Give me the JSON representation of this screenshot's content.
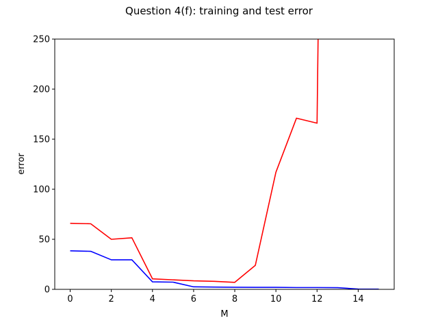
{
  "chart_data": {
    "type": "line",
    "title": "Question 4(f): training and test error",
    "xlabel": "M",
    "ylabel": "error",
    "xlim": [
      -0.75,
      15.75
    ],
    "ylim": [
      0,
      250
    ],
    "xticks": [
      0,
      2,
      4,
      6,
      8,
      10,
      12,
      14
    ],
    "yticks": [
      0,
      50,
      100,
      150,
      200,
      250
    ],
    "grid": false,
    "legend": "none",
    "series": [
      {
        "color": "#ff0000",
        "x": [
          0,
          1,
          2,
          3,
          4,
          5,
          6,
          7,
          8,
          9,
          10,
          11,
          12,
          12.05
        ],
        "y": [
          66,
          65.5,
          50,
          51.5,
          10.5,
          9.5,
          8.5,
          8,
          7,
          24,
          117,
          171,
          166,
          250
        ]
      },
      {
        "color": "#0000ff",
        "x": [
          0,
          1,
          2,
          3,
          4,
          5,
          6,
          7,
          8,
          9,
          10,
          11,
          12,
          13,
          14,
          15
        ],
        "y": [
          38.5,
          38,
          29.5,
          29.5,
          7.5,
          7.2,
          2.5,
          2.3,
          2.1,
          2.0,
          2.0,
          1.8,
          1.8,
          1.7,
          0.3,
          0.2
        ]
      }
    ]
  }
}
